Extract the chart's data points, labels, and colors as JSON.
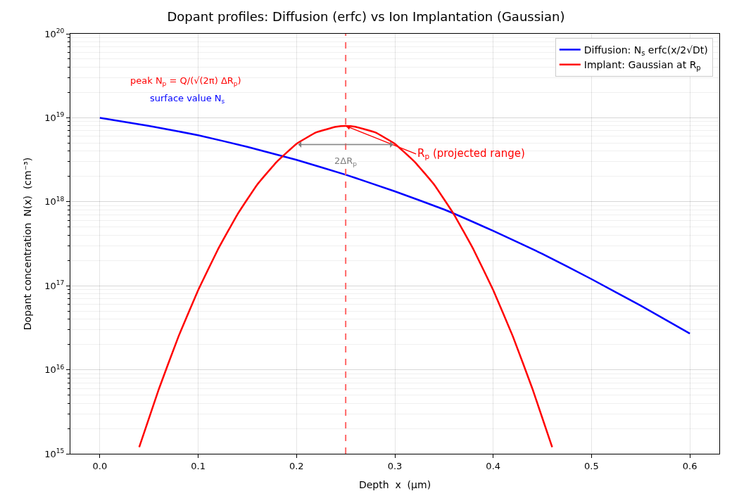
{
  "chart_data": {
    "type": "line",
    "title": "Dopant profiles: Diffusion (erfc) vs Ion Implantation (Gaussian)",
    "xlabel": "Depth  x  (μm)",
    "ylabel": "Dopant concentration  N(x)  (cm⁻³)",
    "series": [
      {
        "name": "Diffusion: N$_{s}$ erfc(x/2√Dt)",
        "color": "#0000ff",
        "x": [
          0,
          0.05,
          0.1,
          0.15,
          0.2,
          0.25,
          0.3,
          0.35,
          0.4,
          0.45,
          0.5,
          0.55,
          0.6
        ],
        "values": [
          1e+19,
          8e+18,
          6.2e+18,
          4.5e+18,
          3.15e+18,
          2.1e+18,
          1.33e+18,
          8.1e+17,
          4.5e+17,
          2.4e+17,
          1.2e+17,
          5.8e+16,
          2.7e+16
        ]
      },
      {
        "name": "Implant: Gaussian at R$_{p}$",
        "color": "#ff0000",
        "x": [
          0.04,
          0.06,
          0.08,
          0.1,
          0.12,
          0.14,
          0.16,
          0.18,
          0.2,
          0.22,
          0.24,
          0.25,
          0.26,
          0.28,
          0.3,
          0.32,
          0.34,
          0.36,
          0.38,
          0.4,
          0.42,
          0.44,
          0.46
        ],
        "values": [
          1200000000000000.0,
          5900000000000000.0,
          2.5e+16,
          8.9e+16,
          2.7e+17,
          7.1e+17,
          1.6e+18,
          3e+18,
          4.9e+18,
          6.7e+18,
          7.8e+18,
          8e+18,
          7.8e+18,
          6.7e+18,
          4.9e+18,
          3e+18,
          1.6e+18,
          7.1e+17,
          2.7e+17,
          8.9e+16,
          2.5e+16,
          5900000000000000.0,
          1200000000000000.0
        ]
      }
    ],
    "log": "y",
    "xlim": [
      -0.03,
      0.63
    ],
    "xticks": [
      {
        "value": 0,
        "label": "0.0"
      },
      {
        "value": 0.1,
        "label": "0.1"
      },
      {
        "value": 0.2,
        "label": "0.2"
      },
      {
        "value": 0.3,
        "label": "0.3"
      },
      {
        "value": 0.4,
        "label": "0.4"
      },
      {
        "value": 0.5,
        "label": "0.5"
      },
      {
        "value": 0.6,
        "label": "0.6"
      }
    ],
    "ylim": [
      1000000000000000.0,
      1e+20
    ],
    "yticks": [
      {
        "value": 1000000000000000.0,
        "label": "10$^{15}$"
      },
      {
        "value": 1e+16,
        "label": "10$^{16}$"
      },
      {
        "value": 1e+17,
        "label": "10$^{17}$"
      },
      {
        "value": 1e+18,
        "label": "10$^{18}$"
      },
      {
        "value": 1e+19,
        "label": "10$^{19}$"
      },
      {
        "value": 1e+20,
        "label": "10$^{20}$"
      }
    ],
    "ref_lines": [
      {
        "axis": "x",
        "value": 0.25,
        "color": "#ff6666",
        "line_style": "dashed"
      }
    ],
    "annotations": [
      "peak N$_{p}$ = Q/(√(2π) ΔR$_{p}$)",
      "surface value N$_{s}$",
      {
        "text": "R$_{p}$ (projected range)",
        "x": 0.25,
        "y": 8e+18
      },
      {
        "text": "2ΔR$_{p}$",
        "x": 0.25,
        "y": 4.8e+18
      }
    ],
    "grid": true,
    "legend": "top right",
    "line_style": "solid",
    "marker": "none"
  }
}
